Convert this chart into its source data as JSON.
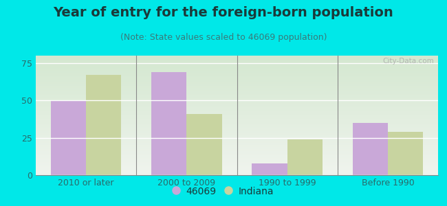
{
  "title": "Year of entry for the foreign-born population",
  "subtitle": "(Note: State values scaled to 46069 population)",
  "categories": [
    "2010 or later",
    "2000 to 2009",
    "1990 to 1999",
    "Before 1990"
  ],
  "values_46069": [
    50,
    69,
    8,
    35
  ],
  "values_indiana": [
    67,
    41,
    24,
    29
  ],
  "color_46069": "#c9a8d8",
  "color_indiana": "#c8d4a0",
  "background_outer": "#00e8e8",
  "background_inner_top": "#f0f4ee",
  "background_inner_bottom": "#d4e8d0",
  "ylim": [
    0,
    80
  ],
  "yticks": [
    0,
    25,
    50,
    75
  ],
  "bar_width": 0.35,
  "legend_label_46069": "46069",
  "legend_label_indiana": "Indiana",
  "title_fontsize": 14,
  "subtitle_fontsize": 9,
  "tick_fontsize": 9,
  "legend_fontsize": 10,
  "title_color": "#1a3a3a",
  "subtitle_color": "#3a7a7a",
  "tick_color": "#2a6a6a"
}
